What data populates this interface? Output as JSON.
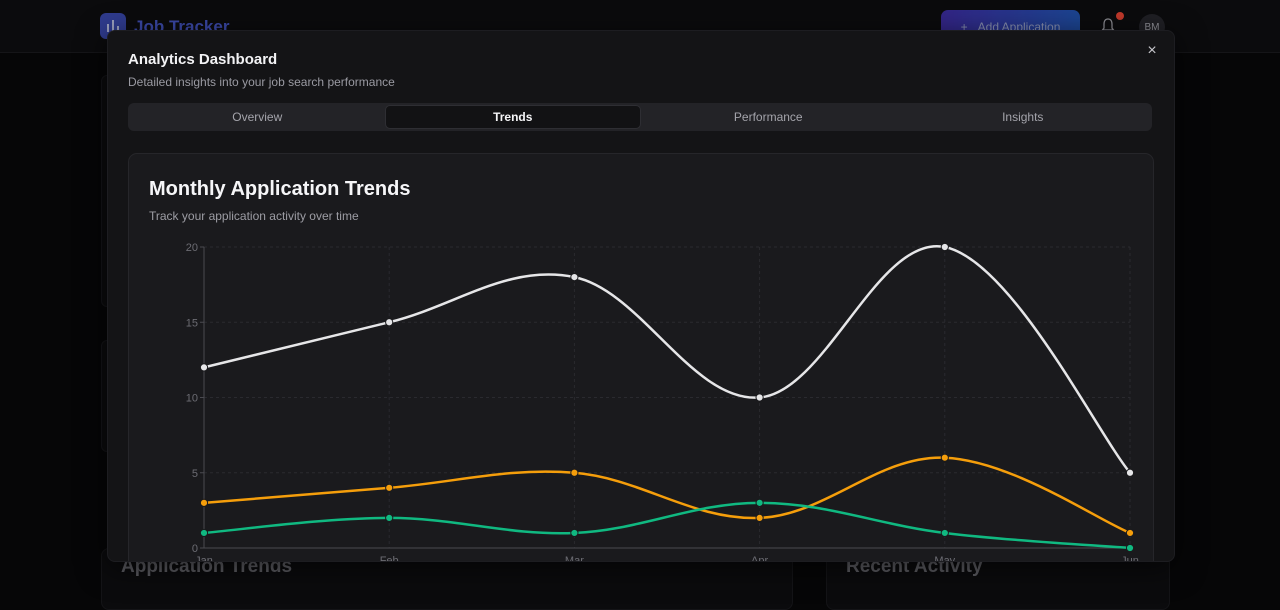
{
  "app": {
    "name": "Job Tracker",
    "add_button": "Add Application",
    "avatar_initials": "BM"
  },
  "background": {
    "left_heading": "Application Trends",
    "right_heading": "Recent Activity"
  },
  "modal": {
    "title": "Analytics Dashboard",
    "subtitle": "Detailed insights into your job search performance",
    "close": "×",
    "tabs": [
      {
        "label": "Overview",
        "active": false
      },
      {
        "label": "Trends",
        "active": true
      },
      {
        "label": "Performance",
        "active": false
      },
      {
        "label": "Insights",
        "active": false
      }
    ],
    "card_title": "Monthly Application Trends",
    "card_subtitle": "Track your application activity over time"
  },
  "chart_data": {
    "type": "line",
    "categories": [
      "Jan",
      "Feb",
      "Mar",
      "Apr",
      "May",
      "Jun"
    ],
    "ylim": [
      0,
      20
    ],
    "yticks": [
      0,
      5,
      10,
      15,
      20
    ],
    "grid": true,
    "smooth": true,
    "series": [
      {
        "values": [
          12,
          15,
          18,
          10,
          20,
          5
        ],
        "color": "#e6e6e8"
      },
      {
        "values": [
          3,
          4,
          5,
          2,
          6,
          1
        ],
        "color": "#f59e0b"
      },
      {
        "values": [
          1,
          2,
          1,
          3,
          1,
          0
        ],
        "color": "#10b981"
      }
    ]
  }
}
